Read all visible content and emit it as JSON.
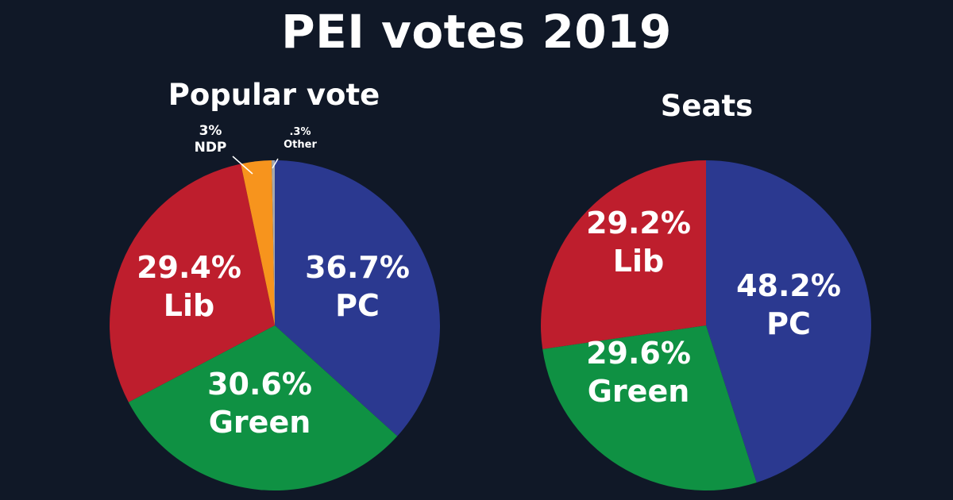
{
  "title": "PEI votes 2019",
  "chart_data": [
    {
      "type": "pie",
      "title": "Popular vote",
      "slices": [
        {
          "name": "PC",
          "value": 36.7,
          "label": "36.7%",
          "color": "#2b3990"
        },
        {
          "name": "Green",
          "value": 30.6,
          "label": "30.6%",
          "color": "#0f9143"
        },
        {
          "name": "Lib",
          "value": 29.4,
          "label": "29.4%",
          "color": "#be1e2d"
        },
        {
          "name": "NDP",
          "value": 3,
          "label": "3%",
          "color": "#f7941d"
        },
        {
          "name": "Other",
          "value": 0.3,
          "label": ".3%",
          "color": "#a7a9ac"
        }
      ]
    },
    {
      "type": "pie",
      "title": "Seats",
      "slices": [
        {
          "name": "PC",
          "value": 48.2,
          "label": "48.2%",
          "color": "#2b3990"
        },
        {
          "name": "Green",
          "value": 29.6,
          "label": "29.6%",
          "color": "#0f9143"
        },
        {
          "name": "Lib",
          "value": 29.2,
          "label": "29.2%",
          "color": "#be1e2d"
        }
      ]
    }
  ]
}
